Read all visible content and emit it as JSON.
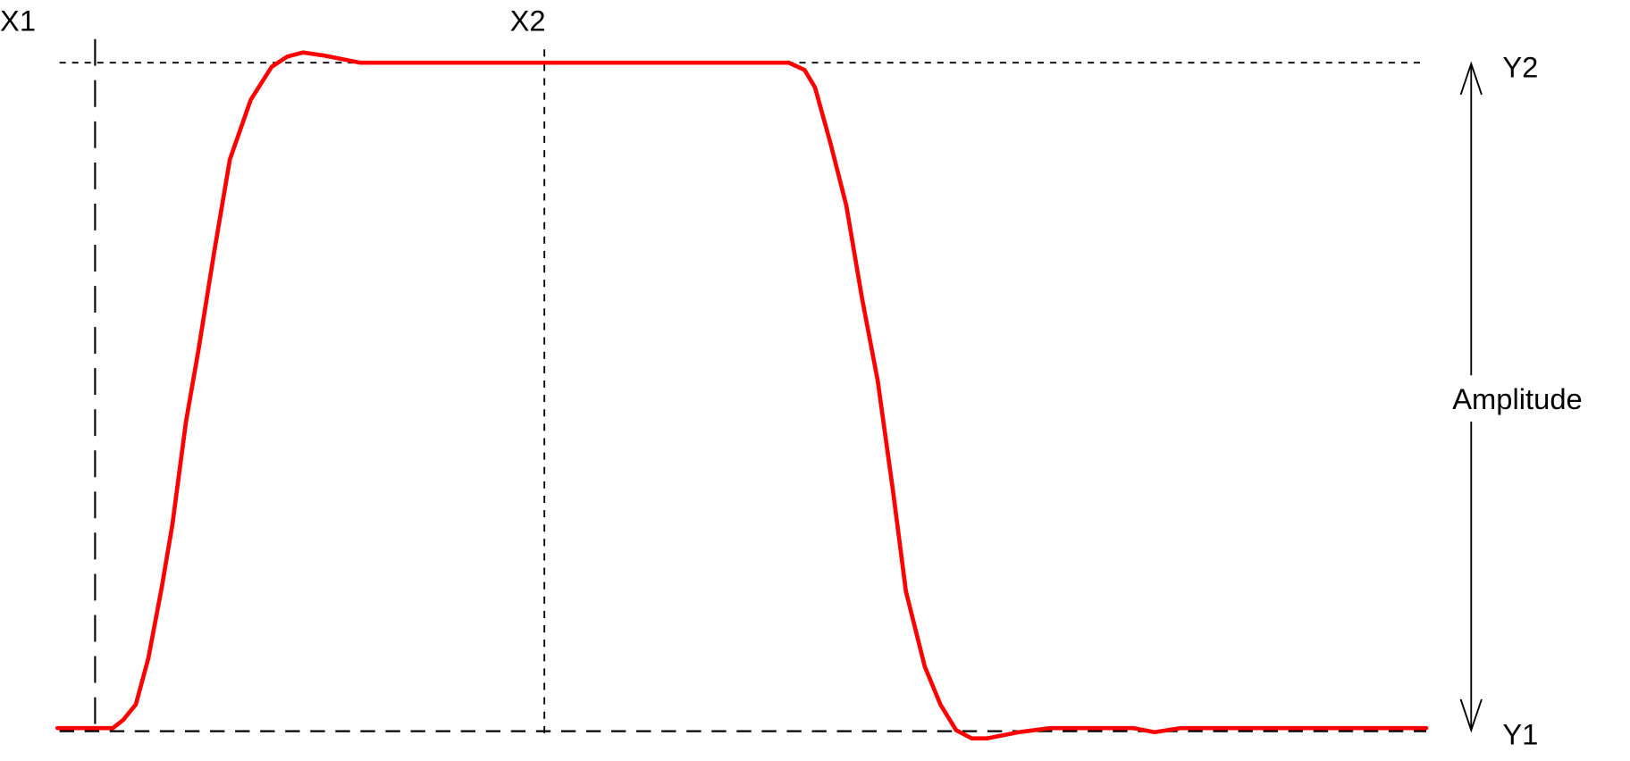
{
  "labels": {
    "x1": "X1",
    "x2": "X2",
    "y1": "Y1",
    "y2": "Y2",
    "amplitude": "Amplitude"
  },
  "colors": {
    "waveform": "#ff0000",
    "guides": "#000000",
    "background": "#ffffff"
  }
}
